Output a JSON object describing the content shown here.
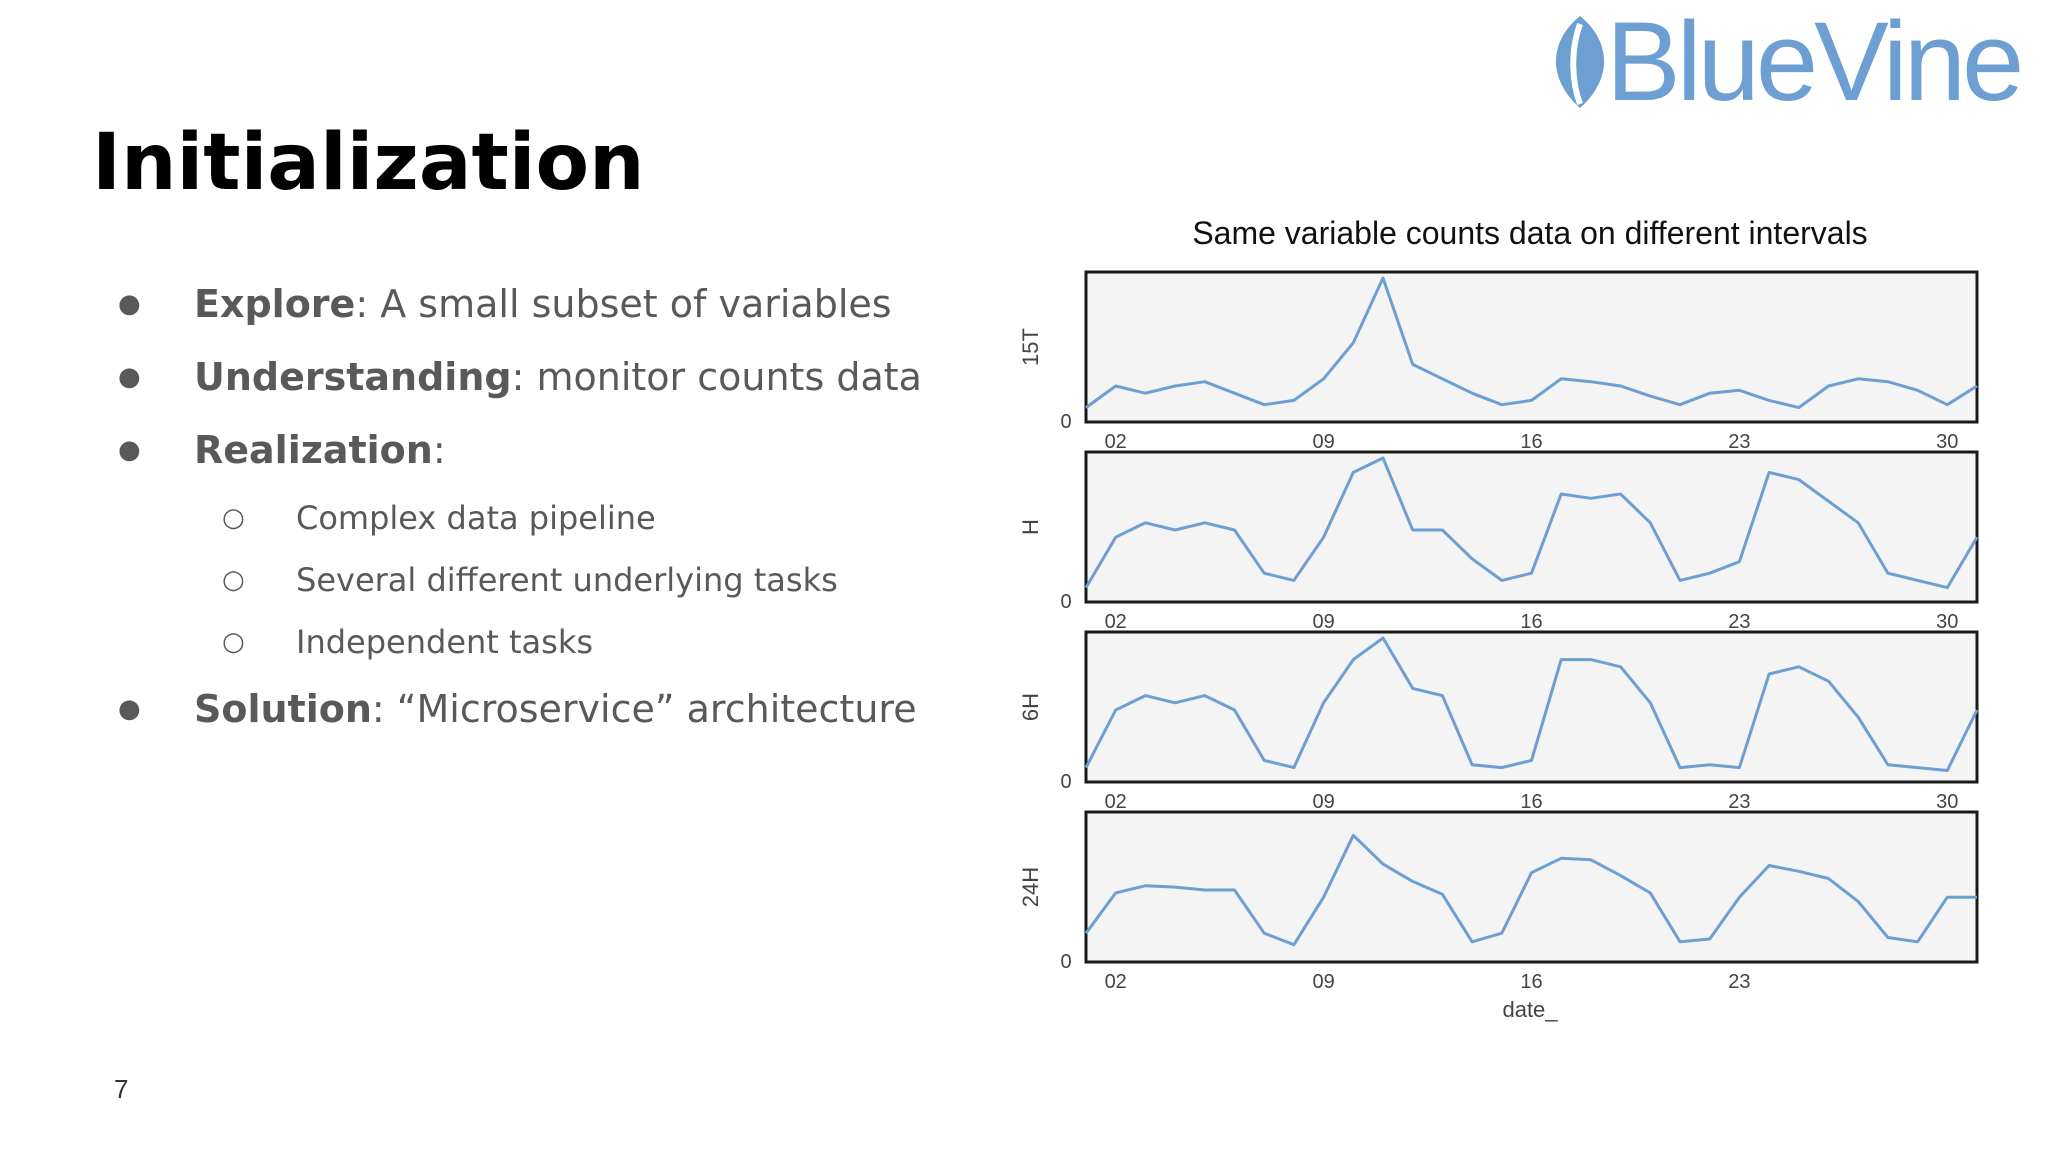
{
  "logo": {
    "text": "BlueVine",
    "color": "#6e9fd2"
  },
  "slide": {
    "title": "Initialization",
    "page_number": "7"
  },
  "bullets": [
    {
      "term": "Explore",
      "sep": ": ",
      "text": "A small subset of variables"
    },
    {
      "term": "Understanding",
      "sep": ": ",
      "text": "monitor counts data"
    },
    {
      "term": "Realization",
      "sep": ":",
      "text": ""
    }
  ],
  "sub_bullets": [
    "Complex data pipeline",
    "Several different underlying tasks",
    "Independent tasks"
  ],
  "final_bullet": {
    "term": "Solution",
    "sep": ": ",
    "text": "“Microservice” architecture"
  },
  "chart_data": {
    "type": "line",
    "title": "Same variable counts data on different intervals",
    "xlabel": "date_",
    "line_color": "#6e9fd2",
    "grid": false,
    "x_range": [
      "01",
      "31"
    ],
    "panels": [
      {
        "ylabel": "15T",
        "ytick": "0",
        "xticks": [
          "02",
          "09",
          "16",
          "23",
          "30"
        ],
        "x": [
          "01",
          "02",
          "03",
          "04",
          "05",
          "06",
          "07",
          "08",
          "09",
          "10",
          "11",
          "12",
          "13",
          "14",
          "15",
          "16",
          "17",
          "18",
          "19",
          "20",
          "21",
          "22",
          "23",
          "24",
          "25",
          "26",
          "27",
          "28",
          "29",
          "30",
          "31"
        ],
        "values": [
          0.1,
          0.25,
          0.2,
          0.25,
          0.28,
          0.2,
          0.12,
          0.15,
          0.3,
          0.55,
          1.0,
          0.4,
          0.3,
          0.2,
          0.12,
          0.15,
          0.3,
          0.28,
          0.25,
          0.18,
          0.12,
          0.2,
          0.22,
          0.15,
          0.1,
          0.25,
          0.3,
          0.28,
          0.22,
          0.12,
          0.25
        ]
      },
      {
        "ylabel": "H",
        "ytick": "0",
        "xticks": [
          "02",
          "09",
          "16",
          "23",
          "30"
        ],
        "x": [
          "01",
          "02",
          "03",
          "04",
          "05",
          "06",
          "07",
          "08",
          "09",
          "10",
          "11",
          "12",
          "13",
          "14",
          "15",
          "16",
          "17",
          "18",
          "19",
          "20",
          "21",
          "22",
          "23",
          "24",
          "25",
          "26",
          "27",
          "28",
          "29",
          "30",
          "31"
        ],
        "values": [
          0.1,
          0.45,
          0.55,
          0.5,
          0.55,
          0.5,
          0.2,
          0.15,
          0.45,
          0.9,
          1.0,
          0.5,
          0.5,
          0.3,
          0.15,
          0.2,
          0.75,
          0.72,
          0.75,
          0.55,
          0.15,
          0.2,
          0.28,
          0.9,
          0.85,
          0.7,
          0.55,
          0.2,
          0.15,
          0.1,
          0.45
        ]
      },
      {
        "ylabel": "6H",
        "ytick": "0",
        "xticks": [
          "02",
          "09",
          "16",
          "23",
          "30"
        ],
        "x": [
          "01",
          "02",
          "03",
          "04",
          "05",
          "06",
          "07",
          "08",
          "09",
          "10",
          "11",
          "12",
          "13",
          "14",
          "15",
          "16",
          "17",
          "18",
          "19",
          "20",
          "21",
          "22",
          "23",
          "24",
          "25",
          "26",
          "27",
          "28",
          "29",
          "30",
          "31"
        ],
        "values": [
          0.1,
          0.5,
          0.6,
          0.55,
          0.6,
          0.5,
          0.15,
          0.1,
          0.55,
          0.85,
          1.0,
          0.65,
          0.6,
          0.12,
          0.1,
          0.15,
          0.85,
          0.85,
          0.8,
          0.55,
          0.1,
          0.12,
          0.1,
          0.75,
          0.8,
          0.7,
          0.45,
          0.12,
          0.1,
          0.08,
          0.5
        ]
      },
      {
        "ylabel": "24H",
        "ytick": "0",
        "xticks": [
          "02",
          "09",
          "16",
          "23"
        ],
        "x": [
          "01",
          "02",
          "03",
          "04",
          "05",
          "06",
          "07",
          "08",
          "09",
          "10",
          "11",
          "12",
          "13",
          "14",
          "15",
          "16",
          "17",
          "18",
          "19",
          "20",
          "21",
          "22",
          "23",
          "24",
          "25",
          "26",
          "27",
          "28",
          "29",
          "30",
          "31"
        ],
        "values": [
          0.2,
          0.48,
          0.53,
          0.52,
          0.5,
          0.5,
          0.2,
          0.12,
          0.45,
          0.88,
          0.68,
          0.56,
          0.47,
          0.14,
          0.2,
          0.62,
          0.72,
          0.71,
          0.6,
          0.48,
          0.14,
          0.16,
          0.45,
          0.67,
          0.63,
          0.58,
          0.42,
          0.17,
          0.14,
          0.45,
          0.45
        ]
      }
    ]
  }
}
